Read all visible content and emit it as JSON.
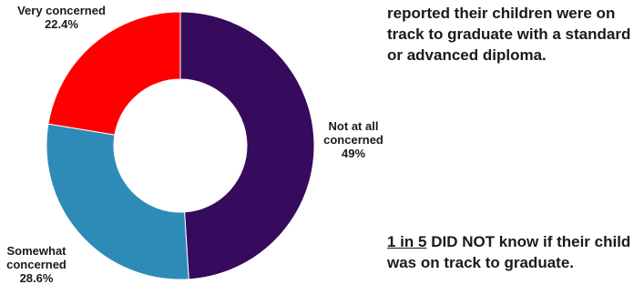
{
  "chart_data": {
    "type": "pie",
    "variant": "donut",
    "slices": [
      {
        "label": "Not at all concerned",
        "value": 49,
        "value_label": "49%",
        "color": "#360A5C"
      },
      {
        "label": "Somewhat concerned",
        "value": 28.6,
        "value_label": "28.6%",
        "color": "#2E8BB8"
      },
      {
        "label": "Very concerned",
        "value": 22.4,
        "value_label": "22.4%",
        "color": "#FF0000"
      }
    ]
  },
  "labels": {
    "very": {
      "line1": "Very concerned",
      "line2": "22.4%"
    },
    "not_at_all": {
      "line1": "Not at all",
      "line2": "concerned",
      "line3": "49%"
    },
    "somewhat": {
      "line1": "Somewhat",
      "line2": "concerned",
      "line3": "28.6%"
    }
  },
  "callouts": {
    "top": "reported their children were on track to graduate with a standard or advanced diploma.",
    "bottom_emphasis": "1 in 5",
    "bottom_rest": " DID NOT know if their child was on track to graduate."
  }
}
